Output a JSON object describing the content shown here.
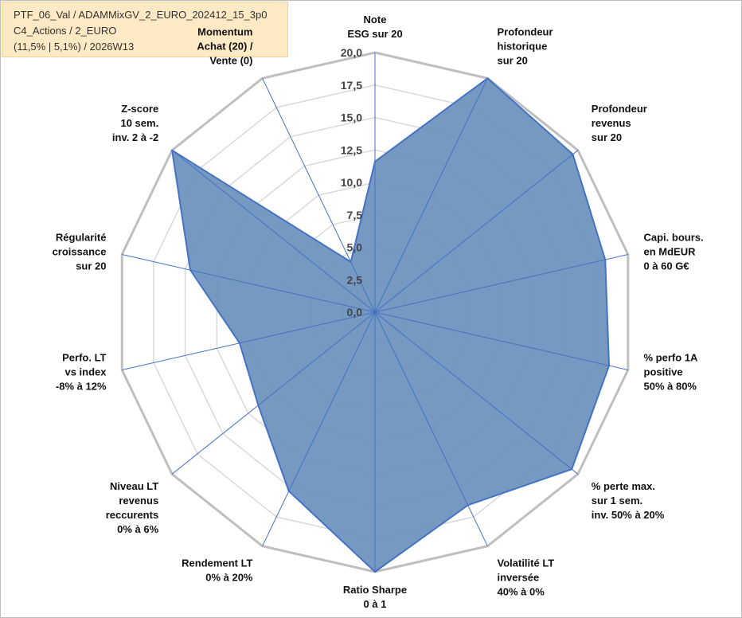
{
  "info": {
    "line1": "PTF_06_Val / ADAMMixGV_2_EURO_202412_15_3p0",
    "line2": "C4_Actions / 2_EURO",
    "line3": "(11,5% | 5,1%) / 2026W13"
  },
  "chart_data": {
    "type": "radar",
    "title": "",
    "rlim": [
      0,
      20
    ],
    "ticks": [
      "0,0",
      "2,5",
      "5,0",
      "7,5",
      "10,0",
      "12,5",
      "15,0",
      "17,5",
      "20,0"
    ],
    "grid": true,
    "fill_color": "#6f94bf",
    "line_color": "#4472c4",
    "grid_color": "#d9d9d9",
    "outer_color": "#bfbfbf",
    "categories": [
      {
        "lines": [
          "Note",
          "ESG sur 20"
        ]
      },
      {
        "lines": [
          "Profondeur",
          "historique",
          "sur 20"
        ]
      },
      {
        "lines": [
          "Profondeur",
          "revenus",
          "sur 20"
        ]
      },
      {
        "lines": [
          "Capi. bours.",
          "en MdEUR",
          "0 à 60 G€"
        ]
      },
      {
        "lines": [
          "% perfo 1A",
          "positive",
          "50% à 80%"
        ]
      },
      {
        "lines": [
          "% perte max.",
          "sur 1 sem.",
          "inv. 50% à 20%"
        ]
      },
      {
        "lines": [
          "Volatilité LT",
          "inversée",
          "40% à 0%"
        ]
      },
      {
        "lines": [
          "Ratio Sharpe",
          "0 à 1"
        ]
      },
      {
        "lines": [
          "Rendement LT",
          "0% à 20%"
        ]
      },
      {
        "lines": [
          "Niveau LT",
          "revenus",
          "reccurents",
          "0% à 6%"
        ]
      },
      {
        "lines": [
          "Perfo. LT",
          "vs index",
          "-8% à 12%"
        ]
      },
      {
        "lines": [
          "Régularité",
          "croissance",
          "sur 20"
        ]
      },
      {
        "lines": [
          "Z-score",
          "10 sem.",
          "inv. 2 à -2"
        ]
      },
      {
        "lines": [
          "Momentum",
          "Achat (20) /",
          "Vente (0)"
        ],
        "first_line_color": "#a6a6a6"
      }
    ],
    "series": [
      {
        "values": [
          11.6,
          20,
          19.5,
          18.2,
          18.5,
          19.4,
          16.5,
          20,
          15.3,
          11.5,
          10.7,
          14.6,
          20,
          4.3
        ]
      }
    ]
  }
}
